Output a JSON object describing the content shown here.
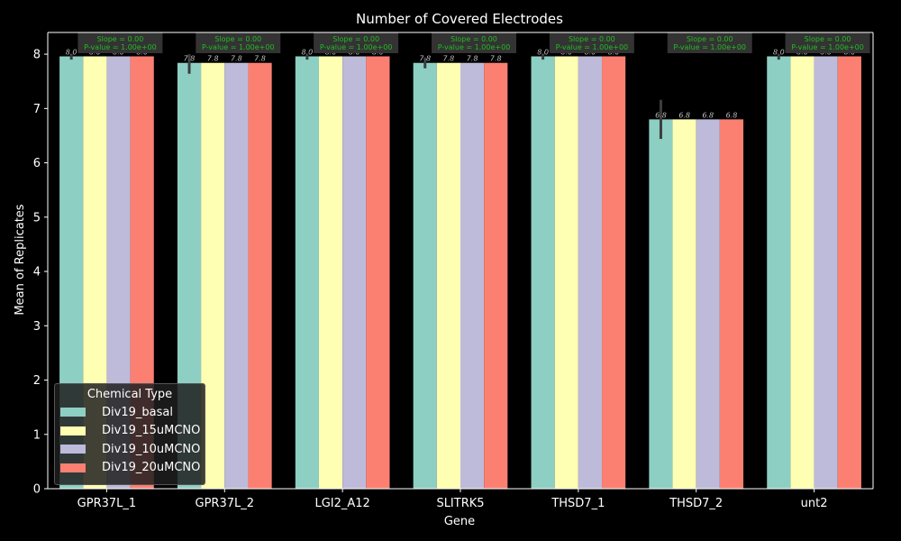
{
  "chart_data": {
    "type": "bar",
    "title": "Number of Covered Electrodes",
    "xlabel": "Gene",
    "ylabel": "Mean of Replicates",
    "ylim": [
      0,
      8.4
    ],
    "yticks": [
      0,
      1,
      2,
      3,
      4,
      5,
      6,
      7,
      8
    ],
    "grid": false,
    "legend": {
      "title": "Chemical Type",
      "position": "lower-left"
    },
    "categories": [
      "GPR37L_1",
      "GPR37L_2",
      "LGI2_A12",
      "SLITRK5",
      "THSD7_1",
      "THSD7_2",
      "unt2"
    ],
    "series": [
      {
        "name": "Div19_basal",
        "color": "#8ecfc4",
        "values": [
          7.96,
          7.84,
          7.96,
          7.84,
          7.96,
          6.8,
          7.96
        ],
        "error_low": [
          7.9,
          7.64,
          7.9,
          7.74,
          7.9,
          6.44,
          7.9
        ],
        "error_high": [
          8.0,
          8.0,
          8.0,
          7.94,
          8.0,
          7.16,
          8.0
        ]
      },
      {
        "name": "Div19_15uMCNO",
        "color": "#ffffb3",
        "values": [
          7.96,
          7.84,
          7.96,
          7.84,
          7.96,
          6.8,
          7.96
        ]
      },
      {
        "name": "Div19_10uMCNO",
        "color": "#bebada",
        "values": [
          7.96,
          7.84,
          7.96,
          7.84,
          7.96,
          6.8,
          7.96
        ]
      },
      {
        "name": "Div19_20uMCNO",
        "color": "#fb8072",
        "values": [
          7.96,
          7.84,
          7.96,
          7.84,
          7.96,
          6.8,
          7.96
        ]
      }
    ],
    "bar_labels": [
      "8.0",
      "7.8",
      "8.0",
      "7.8",
      "8.0",
      "6.8",
      "8.0"
    ],
    "annotations": [
      {
        "line1": "Slope = 0.00",
        "line2": "P-value = 1.00e+00"
      },
      {
        "line1": "Slope = 0.00",
        "line2": "P-value = 1.00e+00"
      },
      {
        "line1": "Slope = 0.00",
        "line2": "P-value = 1.00e+00"
      },
      {
        "line1": "Slope = 0.00",
        "line2": "P-value = 1.00e+00"
      },
      {
        "line1": "Slope = 0.00",
        "line2": "P-value = 1.00e+00"
      },
      {
        "line1": "Slope = 0.00",
        "line2": "P-value = 1.00e+00"
      },
      {
        "line1": "Slope = 0.00",
        "line2": "P-value = 1.00e+00"
      }
    ],
    "annotation_color": "#22bb22"
  }
}
